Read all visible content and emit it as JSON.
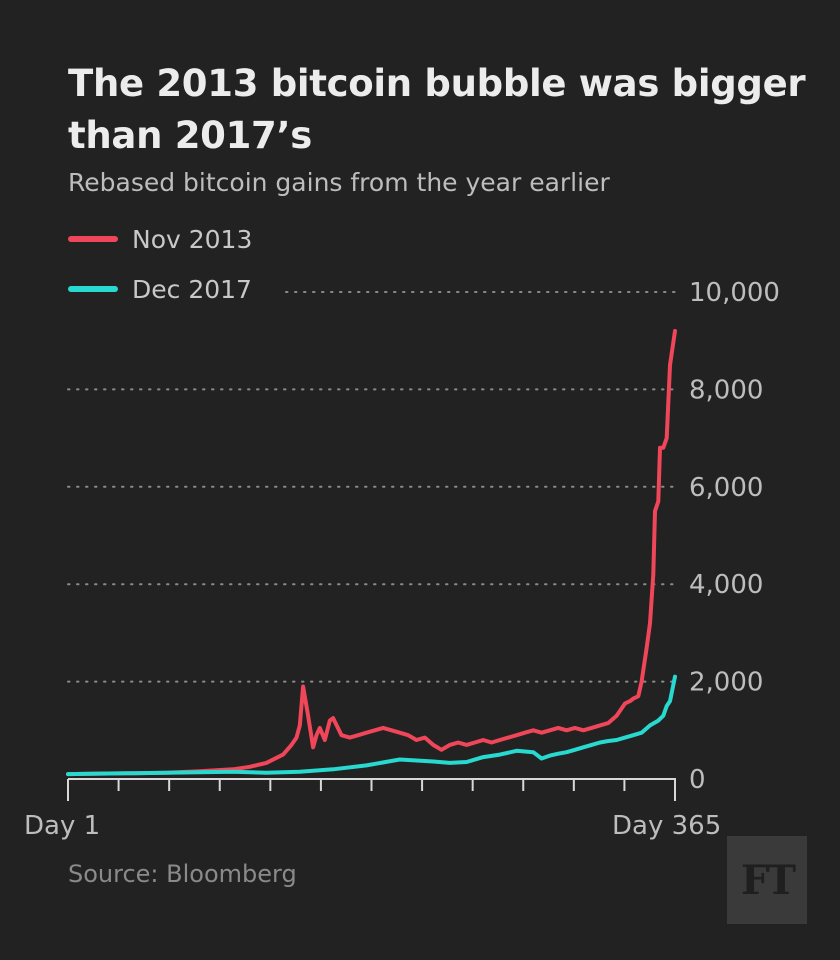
{
  "title": "The 2013 bitcoin bubble was bigger than 2017’s",
  "subtitle": "Rebased bitcoin gains from the year earlier",
  "source": "Source: Bloomberg",
  "logo": "FT",
  "colors": {
    "background": "#222222",
    "nov2013": "#f0465a",
    "dec2017": "#28d9d0",
    "grid": "#8a8a8a"
  },
  "chart_data": {
    "type": "line",
    "title": "The 2013 bitcoin bubble was bigger than 2017’s",
    "subtitle": "Rebased bitcoin gains from the year earlier",
    "xlabel": "",
    "ylabel": "",
    "xlim": [
      1,
      365
    ],
    "ylim": [
      0,
      10000
    ],
    "y_ticks": [
      0,
      2000,
      4000,
      6000,
      8000,
      10000
    ],
    "y_tick_labels": [
      "0",
      "2,000",
      "4,000",
      "6,000",
      "8,000",
      "10,000"
    ],
    "x_tick_labels": [
      "Day 1",
      "Day 365"
    ],
    "legend_position": "top-left",
    "grid": "horizontal dotted",
    "series": [
      {
        "name": "Nov 2013",
        "color": "#f0465a",
        "x": [
          1,
          20,
          40,
          60,
          80,
          100,
          110,
          120,
          130,
          135,
          138,
          140,
          142,
          145,
          148,
          150,
          152,
          155,
          158,
          160,
          165,
          170,
          175,
          180,
          185,
          190,
          195,
          200,
          205,
          210,
          215,
          220,
          225,
          230,
          235,
          240,
          245,
          250,
          255,
          260,
          265,
          270,
          275,
          280,
          285,
          290,
          295,
          300,
          305,
          310,
          315,
          320,
          325,
          330,
          335,
          338,
          340,
          343,
          345,
          348,
          350,
          352,
          353,
          355,
          356,
          358,
          360,
          362,
          365
        ],
        "y": [
          100,
          110,
          120,
          130,
          160,
          200,
          250,
          330,
          500,
          700,
          850,
          1100,
          1900,
          1300,
          650,
          900,
          1050,
          800,
          1200,
          1250,
          900,
          850,
          900,
          950,
          1000,
          1050,
          1000,
          950,
          900,
          800,
          850,
          700,
          600,
          700,
          750,
          700,
          750,
          800,
          750,
          800,
          850,
          900,
          950,
          1000,
          950,
          1000,
          1050,
          1000,
          1050,
          1000,
          1050,
          1100,
          1150,
          1300,
          1550,
          1600,
          1650,
          1700,
          2000,
          2700,
          3200,
          4200,
          5500,
          5700,
          6800,
          6800,
          7000,
          8500,
          9200
        ]
      },
      {
        "name": "Dec 2017",
        "color": "#28d9d0",
        "x": [
          1,
          20,
          40,
          60,
          80,
          100,
          120,
          140,
          160,
          180,
          200,
          210,
          220,
          230,
          240,
          250,
          260,
          270,
          280,
          285,
          290,
          295,
          300,
          305,
          310,
          315,
          320,
          325,
          330,
          335,
          340,
          345,
          350,
          355,
          358,
          360,
          362,
          365
        ],
        "y": [
          100,
          110,
          120,
          130,
          140,
          150,
          130,
          150,
          200,
          280,
          400,
          380,
          360,
          330,
          350,
          450,
          500,
          580,
          550,
          420,
          480,
          520,
          550,
          600,
          650,
          700,
          750,
          780,
          800,
          850,
          900,
          950,
          1100,
          1200,
          1300,
          1500,
          1600,
          2100
        ]
      }
    ]
  }
}
